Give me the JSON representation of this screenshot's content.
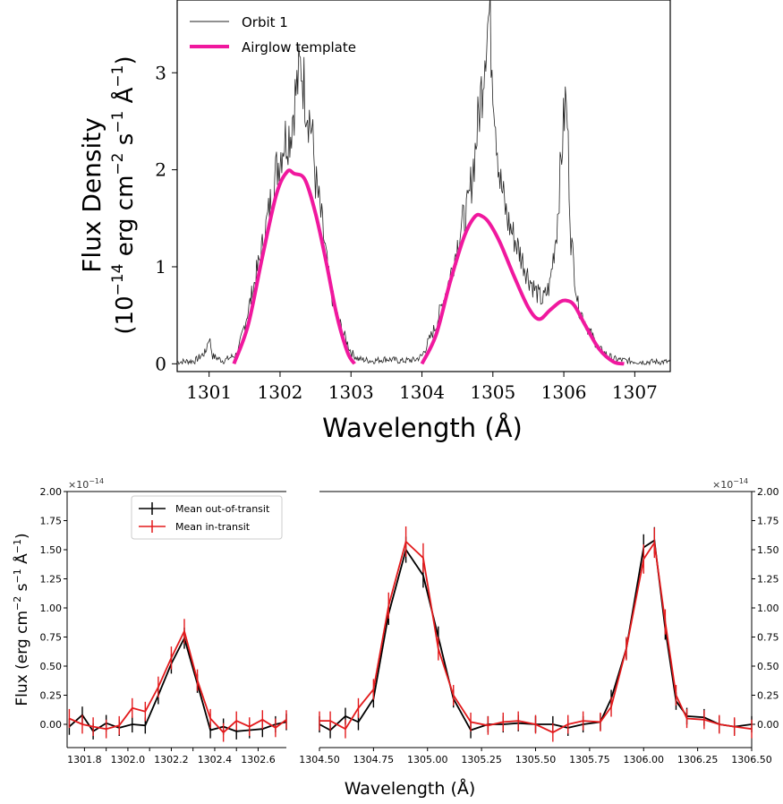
{
  "top": {
    "xlabel": "Wavelength (Å)",
    "ylabel_line1": "Flux Density",
    "ylabel_line2_pre": "(10",
    "ylabel_exp1": "−14",
    "ylabel_mid1": " erg cm",
    "ylabel_exp2": "−2",
    "ylabel_mid2": " s",
    "ylabel_exp3": "−1",
    "ylabel_mid3": " Å",
    "ylabel_exp4": "−1",
    "ylabel_end": ")",
    "legend": [
      "Orbit 1",
      "Airglow template"
    ]
  },
  "bottom": {
    "xlabel": "Wavelength (Å)",
    "ylabel_pre": "Flux (erg cm",
    "ylabel_exp1": "−2",
    "ylabel_mid": " s",
    "ylabel_exp2": "−1",
    "ylabel_mid2": " Å",
    "ylabel_exp3": "−1",
    "ylabel_end": ")",
    "offset_text_left": "×10",
    "offset_exp": "−14",
    "offset_text_right": "×10",
    "legend": [
      "Mean out-of-transit",
      "Mean in-transit"
    ]
  },
  "chart_data": [
    {
      "type": "line",
      "xlabel": "Wavelength (Å)",
      "ylabel": "Flux Density (10^-14 erg cm^-2 s^-1 Å^-1)",
      "xlim": [
        1300.55,
        1307.5
      ],
      "ylim": [
        -0.08,
        3.75
      ],
      "xticks": [
        1301,
        1302,
        1303,
        1304,
        1305,
        1306,
        1307
      ],
      "yticks": [
        0,
        1,
        2,
        3
      ],
      "colors": {
        "orbit": "#222222",
        "template": "#f0189e"
      },
      "series": [
        {
          "name": "Orbit 1",
          "x": [
            1300.55,
            1300.8,
            1300.95,
            1301.0,
            1301.05,
            1301.2,
            1301.4,
            1301.6,
            1301.75,
            1301.85,
            1301.95,
            1302.05,
            1302.15,
            1302.2,
            1302.25,
            1302.3,
            1302.35,
            1302.4,
            1302.45,
            1302.5,
            1302.6,
            1302.7,
            1302.8,
            1302.9,
            1303.0,
            1303.1,
            1303.3,
            1303.5,
            1303.7,
            1303.9,
            1304.0,
            1304.2,
            1304.4,
            1304.55,
            1304.65,
            1304.75,
            1304.85,
            1304.9,
            1304.95,
            1305.0,
            1305.05,
            1305.1,
            1305.2,
            1305.35,
            1305.5,
            1305.6,
            1305.7,
            1305.8,
            1305.9,
            1305.97,
            1306.02,
            1306.05,
            1306.1,
            1306.2,
            1306.35,
            1306.5,
            1306.7,
            1306.9,
            1307.1,
            1307.5
          ],
          "y": [
            0.02,
            0.03,
            0.12,
            0.28,
            0.08,
            0.03,
            0.1,
            0.7,
            1.2,
            1.6,
            2.0,
            2.3,
            2.4,
            2.7,
            2.9,
            3.1,
            2.8,
            2.6,
            2.4,
            1.9,
            1.4,
            0.8,
            0.5,
            0.3,
            0.12,
            0.05,
            0.03,
            0.05,
            0.03,
            0.04,
            0.08,
            0.4,
            0.9,
            1.4,
            1.6,
            2.2,
            2.9,
            3.4,
            3.6,
            3.0,
            2.4,
            1.9,
            1.5,
            1.2,
            0.9,
            0.75,
            0.65,
            0.8,
            1.4,
            2.2,
            2.7,
            2.5,
            1.3,
            0.6,
            0.35,
            0.15,
            0.05,
            0.03,
            0.02,
            0.02
          ]
        },
        {
          "name": "Airglow template",
          "x": [
            1301.35,
            1301.55,
            1301.75,
            1301.95,
            1302.1,
            1302.2,
            1302.35,
            1302.5,
            1302.65,
            1302.8,
            1302.95,
            1303.05,
            1304.0,
            1304.2,
            1304.4,
            1304.6,
            1304.75,
            1304.85,
            1304.95,
            1305.1,
            1305.3,
            1305.5,
            1305.65,
            1305.8,
            1305.95,
            1306.05,
            1306.15,
            1306.3,
            1306.5,
            1306.7,
            1306.85
          ],
          "y": [
            0.0,
            0.4,
            1.1,
            1.75,
            1.98,
            1.96,
            1.9,
            1.55,
            1.05,
            0.5,
            0.12,
            0.0,
            0.0,
            0.3,
            0.85,
            1.32,
            1.52,
            1.52,
            1.45,
            1.25,
            0.9,
            0.58,
            0.46,
            0.55,
            0.64,
            0.65,
            0.6,
            0.4,
            0.15,
            0.02,
            0.0
          ]
        }
      ]
    },
    {
      "type": "line",
      "xlabel": "Wavelength (Å)",
      "ylabel": "Flux (erg cm^-2 s^-1 Å^-1)",
      "yscale_note": "×10^-14",
      "ylim": [
        -0.2,
        2.0
      ],
      "yticks": [
        0.0,
        0.25,
        0.5,
        0.75,
        1.0,
        1.25,
        1.5,
        1.75,
        2.0
      ],
      "panels": [
        {
          "xlim": [
            1301.72,
            1302.73
          ],
          "xticks": [
            1301.8,
            1301.9,
            1302.0,
            1302.1,
            1302.2,
            1302.3,
            1302.4,
            1302.5,
            1302.6
          ],
          "xticklabels": [
            "1301.8",
            "",
            "1302.0",
            "",
            "1302.2",
            "",
            "1302.4",
            "",
            "1302.6"
          ]
        },
        {
          "xlim": [
            1304.5,
            1306.5
          ],
          "xticks": [
            1304.5,
            1304.75,
            1305.0,
            1305.25,
            1305.5,
            1305.75,
            1306.0,
            1306.25,
            1306.5
          ],
          "xticklabels": [
            "1304.50",
            "1304.75",
            "1305.00",
            "1305.25",
            "1305.50",
            "1305.75",
            "1306.00",
            "1306.25",
            "1306.50"
          ]
        }
      ],
      "series": [
        {
          "name": "Mean out-of-transit",
          "color": "#000000",
          "x": [
            1301.73,
            1301.79,
            1301.84,
            1301.9,
            1301.96,
            1302.02,
            1302.08,
            1302.14,
            1302.2,
            1302.26,
            1302.32,
            1302.38,
            1302.44,
            1302.5,
            1302.56,
            1302.62,
            1302.68,
            1302.73,
            1304.5,
            1304.55,
            1304.62,
            1304.68,
            1304.75,
            1304.82,
            1304.9,
            1304.98,
            1305.05,
            1305.12,
            1305.2,
            1305.28,
            1305.35,
            1305.42,
            1305.5,
            1305.58,
            1305.65,
            1305.72,
            1305.8,
            1305.85,
            1305.92,
            1306.0,
            1306.05,
            1306.1,
            1306.15,
            1306.2,
            1306.28,
            1306.35,
            1306.42,
            1306.5
          ],
          "y": [
            -0.02,
            0.08,
            -0.06,
            0.01,
            -0.03,
            0.0,
            -0.01,
            0.25,
            0.52,
            0.74,
            0.35,
            -0.05,
            -0.02,
            -0.06,
            -0.05,
            -0.04,
            0.0,
            0.02,
            0.0,
            -0.05,
            0.07,
            0.02,
            0.22,
            0.95,
            1.5,
            1.28,
            0.75,
            0.22,
            -0.05,
            0.0,
            0.0,
            0.01,
            0.0,
            0.0,
            -0.03,
            0.0,
            0.02,
            0.22,
            0.65,
            1.52,
            1.58,
            0.82,
            0.2,
            0.07,
            0.06,
            0.0,
            -0.02,
            0.0
          ],
          "yerr": 0.07
        },
        {
          "name": "Mean in-transit",
          "color": "#e31a1c",
          "x": [
            1301.73,
            1301.79,
            1301.84,
            1301.9,
            1301.96,
            1302.02,
            1302.08,
            1302.14,
            1302.2,
            1302.26,
            1302.32,
            1302.38,
            1302.44,
            1302.5,
            1302.56,
            1302.62,
            1302.68,
            1302.73,
            1304.5,
            1304.55,
            1304.62,
            1304.68,
            1304.75,
            1304.82,
            1304.9,
            1304.98,
            1305.05,
            1305.12,
            1305.2,
            1305.28,
            1305.35,
            1305.42,
            1305.5,
            1305.58,
            1305.65,
            1305.72,
            1305.8,
            1305.85,
            1305.92,
            1306.0,
            1306.05,
            1306.1,
            1306.15,
            1306.2,
            1306.28,
            1306.35,
            1306.42,
            1306.5
          ],
          "y": [
            0.05,
            0.0,
            -0.02,
            -0.04,
            -0.01,
            0.14,
            0.11,
            0.32,
            0.57,
            0.8,
            0.38,
            0.05,
            -0.07,
            0.03,
            -0.02,
            0.04,
            -0.03,
            0.04,
            0.03,
            0.03,
            -0.04,
            0.14,
            0.3,
            1.02,
            1.57,
            1.43,
            0.65,
            0.25,
            0.02,
            -0.01,
            0.02,
            0.03,
            0.0,
            -0.07,
            0.0,
            0.03,
            0.02,
            0.15,
            0.65,
            1.42,
            1.56,
            0.88,
            0.25,
            0.05,
            0.04,
            0.0,
            -0.02,
            -0.04
          ],
          "yerr": 0.08
        }
      ]
    }
  ]
}
